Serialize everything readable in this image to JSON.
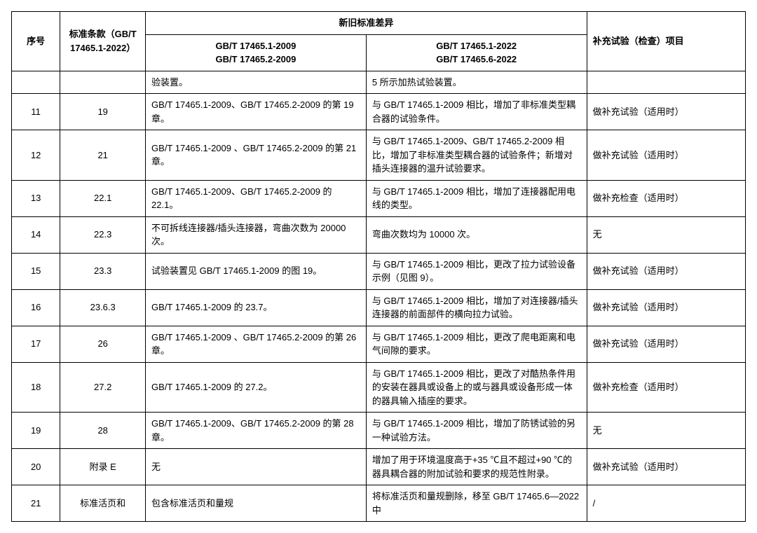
{
  "table": {
    "header": {
      "seq": "序号",
      "std_clause": "标准条款（GB/T 17465.1-2022）",
      "diff_group": "新旧标准差异",
      "old_std": "GB/T 17465.1-2009\nGB/T 17465.2-2009",
      "new_std": "GB/T 17465.1-2022\nGB/T 17465.6-2022",
      "supplement": "补充试验（检查）项目"
    },
    "rows": [
      {
        "seq": "",
        "std": "",
        "old": "验装置。",
        "new": "5 所示加热试验装置。",
        "supp": ""
      },
      {
        "seq": "11",
        "std": "19",
        "old": "GB/T 17465.1-2009、GB/T 17465.2-2009 的第 19 章。",
        "new": "与 GB/T 17465.1-2009 相比，增加了非标准类型耦合器的试验条件。",
        "supp": "做补充试验（适用时）"
      },
      {
        "seq": "12",
        "std": "21",
        "old": "GB/T 17465.1-2009 、GB/T 17465.2-2009 的第 21 章。",
        "new": "与 GB/T 17465.1-2009、GB/T 17465.2-2009 相比，增加了非标准类型耦合器的试验条件；新增对插头连接器的温升试验要求。",
        "supp": "做补充试验（适用时）"
      },
      {
        "seq": "13",
        "std": "22.1",
        "old": "GB/T 17465.1-2009、GB/T 17465.2-2009 的 22.1。",
        "new": "与 GB/T 17465.1-2009 相比，增加了连接器配用电线的类型。",
        "supp": "做补充检查（适用时）"
      },
      {
        "seq": "14",
        "std": "22.3",
        "old": "不可拆线连接器/插头连接器，弯曲次数为 20000 次。",
        "new": "弯曲次数均为 10000 次。",
        "supp": "无"
      },
      {
        "seq": "15",
        "std": "23.3",
        "old": "试验装置见 GB/T 17465.1-2009 的图 19。",
        "new": "与 GB/T 17465.1-2009 相比，更改了拉力试验设备示例（见图 9）。",
        "supp": "做补充试验（适用时）"
      },
      {
        "seq": "16",
        "std": "23.6.3",
        "old": "GB/T 17465.1-2009 的 23.7。",
        "new": "与 GB/T 17465.1-2009 相比，增加了对连接器/插头连接器的前面部件的横向拉力试验。",
        "supp": "做补充试验（适用时）"
      },
      {
        "seq": "17",
        "std": "26",
        "old": "GB/T 17465.1-2009 、GB/T 17465.2-2009 的第 26 章。",
        "new": "与 GB/T 17465.1-2009 相比，更改了爬电距离和电气间隙的要求。",
        "supp": "做补充试验（适用时）"
      },
      {
        "seq": "18",
        "std": "27.2",
        "old": "GB/T 17465.1-2009 的 27.2。",
        "new": "与 GB/T 17465.1-2009 相比，更改了对酷热条件用的安装在器具或设备上的或与器具或设备形成一体的器具输入插座的要求。",
        "supp": "做补充检查（适用时）"
      },
      {
        "seq": "19",
        "std": "28",
        "old": "GB/T 17465.1-2009、GB/T 17465.2-2009 的第 28 章。",
        "new": "与 GB/T 17465.1-2009 相比，增加了防锈试验的另一种试验方法。",
        "supp": "无"
      },
      {
        "seq": "20",
        "std": "附录 E",
        "old": "无",
        "new": "增加了用于环境温度高于+35 ℃且不超过+90 ℃的器具耦合器的附加试验和要求的规范性附录。",
        "supp": "做补充试验（适用时）"
      },
      {
        "seq": "21",
        "std": "标准活页和",
        "old": "包含标准活页和量规",
        "new": "将标准活页和量规删除，移至 GB/T 17465.6—2022 中",
        "supp": "/"
      }
    ]
  }
}
